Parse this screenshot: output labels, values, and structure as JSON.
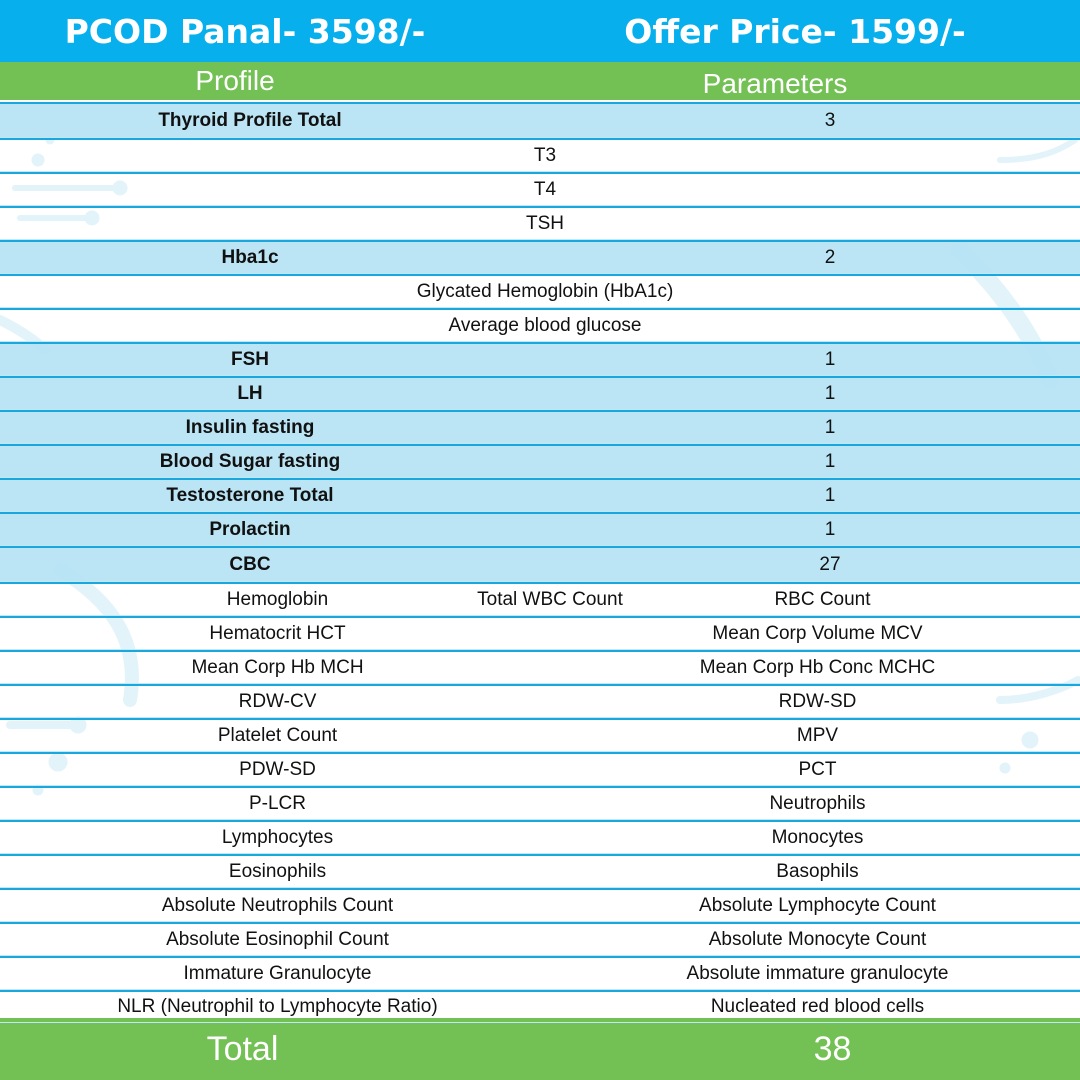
{
  "header": {
    "panel_price": "PCOD Panal- 3598/-",
    "offer_price": "Offer Price- 1599/-"
  },
  "columns": {
    "profile": "Profile",
    "parameters": "Parameters"
  },
  "profiles": {
    "thyroid": {
      "name": "Thyroid Profile Total",
      "count": "3"
    },
    "thyroid_items": [
      "T3",
      "T4",
      "TSH"
    ],
    "hba1c": {
      "name": "Hba1c",
      "count": "2"
    },
    "hba1c_items": [
      "Glycated Hemoglobin (HbA1c)",
      "Average blood glucose"
    ],
    "singles": [
      {
        "name": "FSH",
        "count": "1"
      },
      {
        "name": "LH",
        "count": "1"
      },
      {
        "name": "Insulin fasting",
        "count": "1"
      },
      {
        "name": "Blood Sugar fasting",
        "count": "1"
      },
      {
        "name": "Testosterone Total",
        "count": "1"
      },
      {
        "name": "Prolactin",
        "count": "1"
      }
    ],
    "cbc": {
      "name": "CBC",
      "count": "27"
    }
  },
  "cbc_items": {
    "first_row": [
      "Hemoglobin",
      "Total WBC Count",
      "RBC Count"
    ],
    "pairs": [
      [
        "Hematocrit HCT",
        "Mean Corp Volume MCV"
      ],
      [
        "Mean Corp Hb MCH",
        "Mean Corp Hb Conc MCHC"
      ],
      [
        "RDW-CV",
        "RDW-SD"
      ],
      [
        "Platelet Count",
        "MPV"
      ],
      [
        "PDW-SD",
        "PCT"
      ],
      [
        "P-LCR",
        "Neutrophils"
      ],
      [
        "Lymphocytes",
        "Monocytes"
      ],
      [
        "Eosinophils",
        "Basophils"
      ],
      [
        "Absolute Neutrophils Count",
        "Absolute Lymphocyte Count"
      ],
      [
        "Absolute Eosinophil Count",
        "Absolute Monocyte Count"
      ],
      [
        "Immature Granulocyte",
        "Absolute immature granulocyte"
      ],
      [
        "NLR (Neutrophil to Lymphocyte Ratio)",
        "Nucleated red blood cells"
      ]
    ]
  },
  "total": {
    "label": "Total",
    "value": "38"
  },
  "colors": {
    "header_blue": "#07b0ec",
    "green": "#73c054",
    "row_blue": "#b5e3f4",
    "line_blue": "#1aa7dd"
  }
}
